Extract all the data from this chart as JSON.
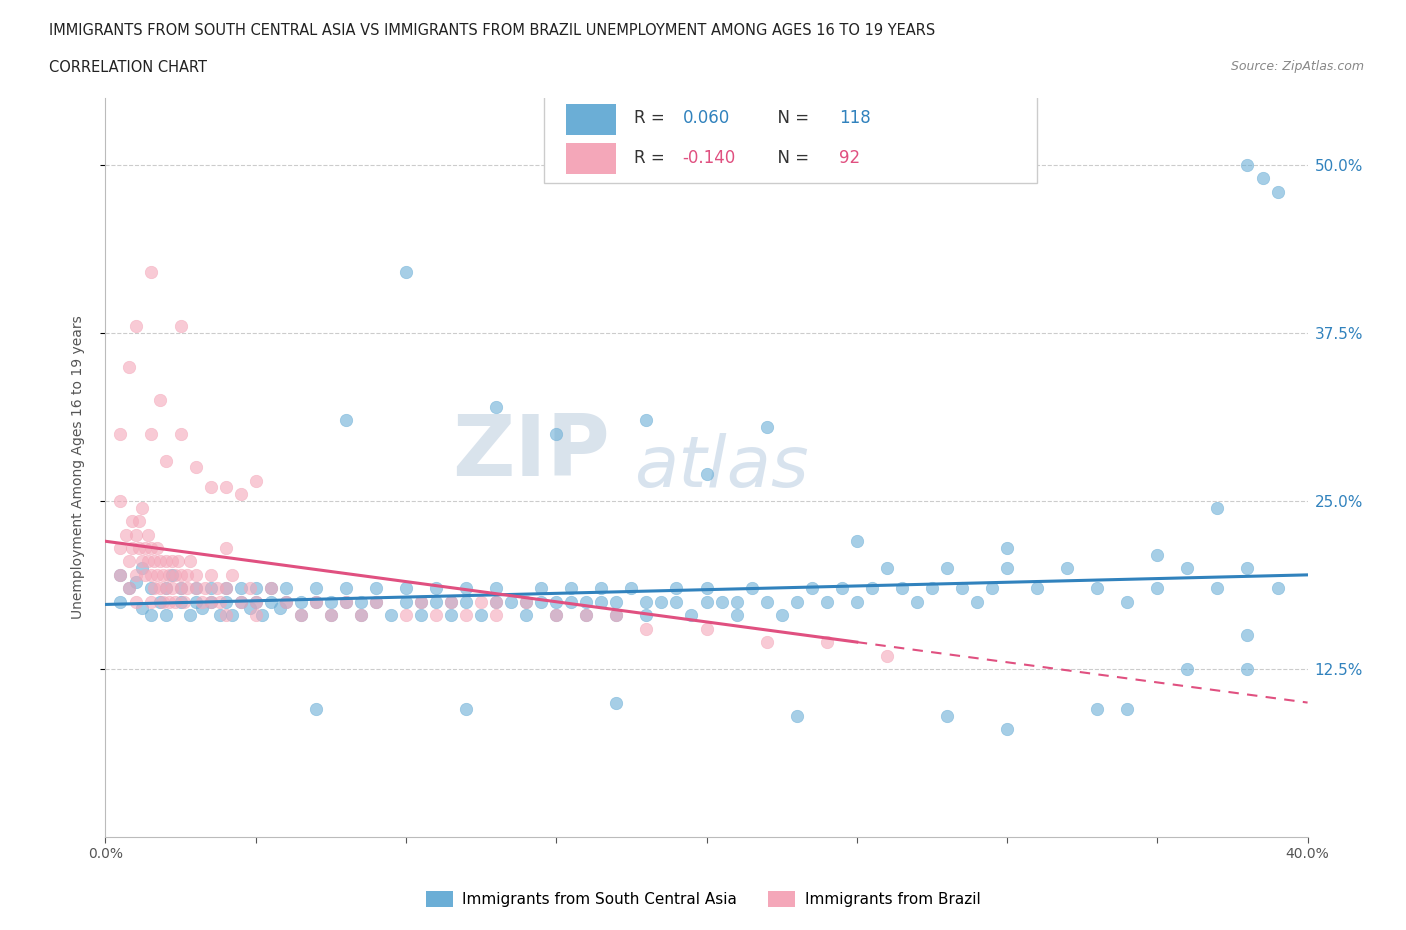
{
  "title_line1": "IMMIGRANTS FROM SOUTH CENTRAL ASIA VS IMMIGRANTS FROM BRAZIL UNEMPLOYMENT AMONG AGES 16 TO 19 YEARS",
  "title_line2": "CORRELATION CHART",
  "source_text": "Source: ZipAtlas.com",
  "ylabel": "Unemployment Among Ages 16 to 19 years",
  "xlim": [
    0.0,
    0.4
  ],
  "ylim": [
    0.0,
    0.55
  ],
  "ytick_positions": [
    0.125,
    0.25,
    0.375,
    0.5
  ],
  "ytick_labels": [
    "12.5%",
    "25.0%",
    "37.5%",
    "50.0%"
  ],
  "R1": "0.060",
  "N1": "118",
  "R2": "-0.140",
  "N2": "92",
  "color_blue": "#6baed6",
  "color_pink": "#f4a7b9",
  "color_blue_dark": "#3182bd",
  "color_pink_dark": "#e05080",
  "color_axis": "#bbbbbb",
  "color_grid": "#cccccc",
  "watermark_ZIP": "ZIP",
  "watermark_atlas": "atlas",
  "label_blue": "Immigrants from South Central Asia",
  "label_pink": "Immigrants from Brazil",
  "scatter_blue": [
    [
      0.005,
      0.195
    ],
    [
      0.005,
      0.175
    ],
    [
      0.008,
      0.185
    ],
    [
      0.01,
      0.19
    ],
    [
      0.012,
      0.17
    ],
    [
      0.012,
      0.2
    ],
    [
      0.015,
      0.185
    ],
    [
      0.015,
      0.165
    ],
    [
      0.018,
      0.175
    ],
    [
      0.02,
      0.185
    ],
    [
      0.02,
      0.165
    ],
    [
      0.022,
      0.195
    ],
    [
      0.025,
      0.175
    ],
    [
      0.025,
      0.185
    ],
    [
      0.028,
      0.165
    ],
    [
      0.03,
      0.175
    ],
    [
      0.03,
      0.185
    ],
    [
      0.032,
      0.17
    ],
    [
      0.035,
      0.175
    ],
    [
      0.035,
      0.185
    ],
    [
      0.038,
      0.165
    ],
    [
      0.04,
      0.175
    ],
    [
      0.04,
      0.185
    ],
    [
      0.042,
      0.165
    ],
    [
      0.045,
      0.175
    ],
    [
      0.045,
      0.185
    ],
    [
      0.048,
      0.17
    ],
    [
      0.05,
      0.175
    ],
    [
      0.05,
      0.185
    ],
    [
      0.052,
      0.165
    ],
    [
      0.055,
      0.175
    ],
    [
      0.055,
      0.185
    ],
    [
      0.058,
      0.17
    ],
    [
      0.06,
      0.175
    ],
    [
      0.06,
      0.185
    ],
    [
      0.065,
      0.165
    ],
    [
      0.065,
      0.175
    ],
    [
      0.07,
      0.185
    ],
    [
      0.07,
      0.175
    ],
    [
      0.075,
      0.165
    ],
    [
      0.075,
      0.175
    ],
    [
      0.08,
      0.185
    ],
    [
      0.08,
      0.175
    ],
    [
      0.085,
      0.165
    ],
    [
      0.085,
      0.175
    ],
    [
      0.09,
      0.185
    ],
    [
      0.09,
      0.175
    ],
    [
      0.095,
      0.165
    ],
    [
      0.1,
      0.175
    ],
    [
      0.1,
      0.185
    ],
    [
      0.105,
      0.165
    ],
    [
      0.105,
      0.175
    ],
    [
      0.11,
      0.185
    ],
    [
      0.11,
      0.175
    ],
    [
      0.115,
      0.165
    ],
    [
      0.115,
      0.175
    ],
    [
      0.12,
      0.185
    ],
    [
      0.12,
      0.175
    ],
    [
      0.125,
      0.165
    ],
    [
      0.13,
      0.175
    ],
    [
      0.13,
      0.185
    ],
    [
      0.135,
      0.175
    ],
    [
      0.14,
      0.165
    ],
    [
      0.14,
      0.175
    ],
    [
      0.145,
      0.185
    ],
    [
      0.145,
      0.175
    ],
    [
      0.15,
      0.165
    ],
    [
      0.15,
      0.175
    ],
    [
      0.155,
      0.185
    ],
    [
      0.155,
      0.175
    ],
    [
      0.16,
      0.165
    ],
    [
      0.16,
      0.175
    ],
    [
      0.165,
      0.185
    ],
    [
      0.165,
      0.175
    ],
    [
      0.17,
      0.165
    ],
    [
      0.17,
      0.175
    ],
    [
      0.175,
      0.185
    ],
    [
      0.18,
      0.175
    ],
    [
      0.18,
      0.165
    ],
    [
      0.185,
      0.175
    ],
    [
      0.19,
      0.185
    ],
    [
      0.19,
      0.175
    ],
    [
      0.195,
      0.165
    ],
    [
      0.2,
      0.175
    ],
    [
      0.2,
      0.185
    ],
    [
      0.205,
      0.175
    ],
    [
      0.21,
      0.165
    ],
    [
      0.21,
      0.175
    ],
    [
      0.215,
      0.185
    ],
    [
      0.22,
      0.175
    ],
    [
      0.225,
      0.165
    ],
    [
      0.23,
      0.175
    ],
    [
      0.235,
      0.185
    ],
    [
      0.24,
      0.175
    ],
    [
      0.245,
      0.185
    ],
    [
      0.25,
      0.175
    ],
    [
      0.255,
      0.185
    ],
    [
      0.26,
      0.2
    ],
    [
      0.265,
      0.185
    ],
    [
      0.27,
      0.175
    ],
    [
      0.275,
      0.185
    ],
    [
      0.28,
      0.2
    ],
    [
      0.285,
      0.185
    ],
    [
      0.29,
      0.175
    ],
    [
      0.295,
      0.185
    ],
    [
      0.3,
      0.2
    ],
    [
      0.31,
      0.185
    ],
    [
      0.32,
      0.2
    ],
    [
      0.33,
      0.185
    ],
    [
      0.34,
      0.175
    ],
    [
      0.35,
      0.185
    ],
    [
      0.36,
      0.2
    ],
    [
      0.37,
      0.185
    ],
    [
      0.38,
      0.2
    ],
    [
      0.39,
      0.185
    ],
    [
      0.15,
      0.3
    ],
    [
      0.2,
      0.27
    ],
    [
      0.22,
      0.305
    ],
    [
      0.25,
      0.22
    ],
    [
      0.3,
      0.215
    ],
    [
      0.35,
      0.21
    ],
    [
      0.38,
      0.5
    ],
    [
      0.385,
      0.49
    ],
    [
      0.39,
      0.48
    ],
    [
      0.08,
      0.31
    ],
    [
      0.13,
      0.32
    ],
    [
      0.18,
      0.31
    ],
    [
      0.07,
      0.095
    ],
    [
      0.12,
      0.095
    ],
    [
      0.17,
      0.1
    ],
    [
      0.23,
      0.09
    ],
    [
      0.28,
      0.09
    ],
    [
      0.34,
      0.095
    ],
    [
      0.36,
      0.125
    ],
    [
      0.1,
      0.42
    ],
    [
      0.38,
      0.125
    ],
    [
      0.33,
      0.095
    ],
    [
      0.37,
      0.245
    ],
    [
      0.38,
      0.15
    ],
    [
      0.3,
      0.08
    ]
  ],
  "scatter_pink": [
    [
      0.005,
      0.195
    ],
    [
      0.005,
      0.215
    ],
    [
      0.007,
      0.225
    ],
    [
      0.008,
      0.205
    ],
    [
      0.008,
      0.185
    ],
    [
      0.009,
      0.235
    ],
    [
      0.009,
      0.215
    ],
    [
      0.01,
      0.225
    ],
    [
      0.01,
      0.195
    ],
    [
      0.01,
      0.175
    ],
    [
      0.011,
      0.215
    ],
    [
      0.011,
      0.235
    ],
    [
      0.012,
      0.205
    ],
    [
      0.012,
      0.245
    ],
    [
      0.013,
      0.215
    ],
    [
      0.013,
      0.195
    ],
    [
      0.014,
      0.225
    ],
    [
      0.014,
      0.205
    ],
    [
      0.015,
      0.215
    ],
    [
      0.015,
      0.195
    ],
    [
      0.015,
      0.175
    ],
    [
      0.016,
      0.205
    ],
    [
      0.016,
      0.185
    ],
    [
      0.017,
      0.215
    ],
    [
      0.017,
      0.195
    ],
    [
      0.018,
      0.205
    ],
    [
      0.018,
      0.185
    ],
    [
      0.019,
      0.195
    ],
    [
      0.019,
      0.175
    ],
    [
      0.02,
      0.205
    ],
    [
      0.02,
      0.185
    ],
    [
      0.021,
      0.195
    ],
    [
      0.021,
      0.175
    ],
    [
      0.022,
      0.205
    ],
    [
      0.022,
      0.185
    ],
    [
      0.023,
      0.195
    ],
    [
      0.023,
      0.175
    ],
    [
      0.024,
      0.205
    ],
    [
      0.025,
      0.185
    ],
    [
      0.025,
      0.195
    ],
    [
      0.026,
      0.175
    ],
    [
      0.027,
      0.185
    ],
    [
      0.027,
      0.195
    ],
    [
      0.028,
      0.205
    ],
    [
      0.03,
      0.185
    ],
    [
      0.03,
      0.195
    ],
    [
      0.032,
      0.175
    ],
    [
      0.033,
      0.185
    ],
    [
      0.035,
      0.175
    ],
    [
      0.035,
      0.195
    ],
    [
      0.037,
      0.185
    ],
    [
      0.038,
      0.175
    ],
    [
      0.04,
      0.185
    ],
    [
      0.042,
      0.195
    ],
    [
      0.04,
      0.215
    ],
    [
      0.04,
      0.165
    ],
    [
      0.045,
      0.175
    ],
    [
      0.048,
      0.185
    ],
    [
      0.05,
      0.175
    ],
    [
      0.05,
      0.165
    ],
    [
      0.055,
      0.185
    ],
    [
      0.06,
      0.175
    ],
    [
      0.065,
      0.165
    ],
    [
      0.07,
      0.175
    ],
    [
      0.075,
      0.165
    ],
    [
      0.08,
      0.175
    ],
    [
      0.085,
      0.165
    ],
    [
      0.09,
      0.175
    ],
    [
      0.1,
      0.165
    ],
    [
      0.105,
      0.175
    ],
    [
      0.11,
      0.165
    ],
    [
      0.115,
      0.175
    ],
    [
      0.12,
      0.165
    ],
    [
      0.125,
      0.175
    ],
    [
      0.13,
      0.165
    ],
    [
      0.015,
      0.3
    ],
    [
      0.018,
      0.325
    ],
    [
      0.02,
      0.28
    ],
    [
      0.025,
      0.3
    ],
    [
      0.03,
      0.275
    ],
    [
      0.035,
      0.26
    ],
    [
      0.04,
      0.26
    ],
    [
      0.045,
      0.255
    ],
    [
      0.05,
      0.265
    ],
    [
      0.025,
      0.38
    ],
    [
      0.015,
      0.42
    ],
    [
      0.01,
      0.38
    ],
    [
      0.008,
      0.35
    ],
    [
      0.005,
      0.3
    ],
    [
      0.005,
      0.25
    ],
    [
      0.13,
      0.175
    ],
    [
      0.14,
      0.175
    ],
    [
      0.15,
      0.165
    ],
    [
      0.16,
      0.165
    ],
    [
      0.17,
      0.165
    ],
    [
      0.18,
      0.155
    ],
    [
      0.2,
      0.155
    ],
    [
      0.22,
      0.145
    ],
    [
      0.24,
      0.145
    ],
    [
      0.26,
      0.135
    ]
  ]
}
